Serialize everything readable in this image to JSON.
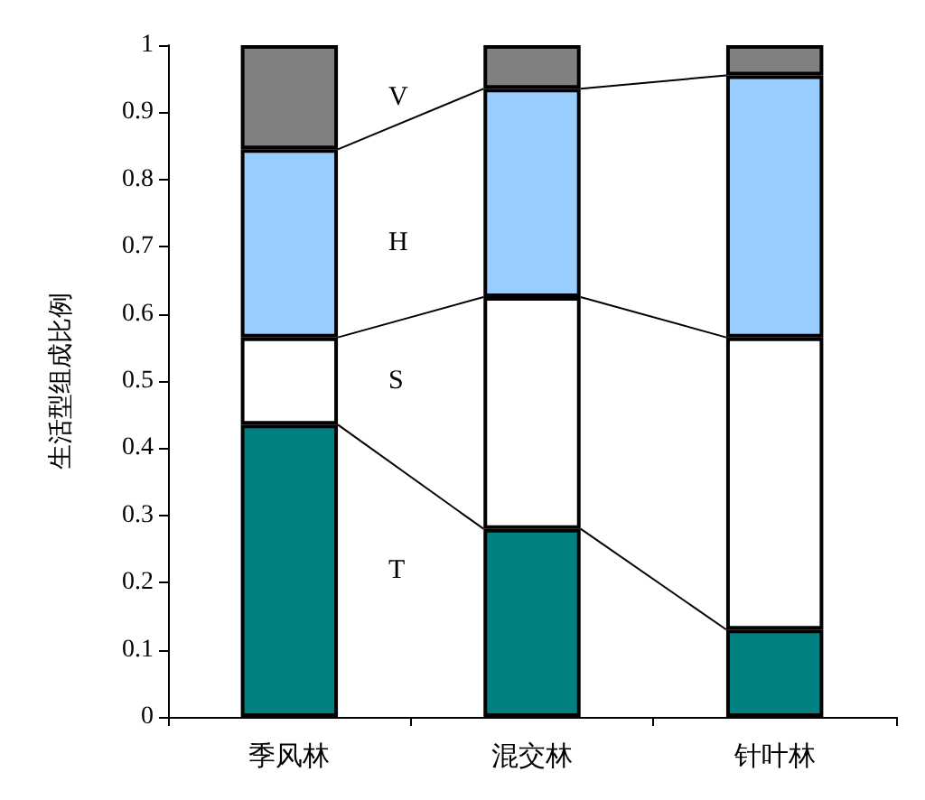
{
  "chart_data": {
    "type": "bar",
    "stacked": true,
    "ylabel": "生活型组成比例",
    "categories": [
      "季风林",
      "混交林",
      "针叶林"
    ],
    "series": [
      {
        "name": "T",
        "color": "#008080",
        "values": [
          0.435,
          0.28,
          0.13
        ]
      },
      {
        "name": "S",
        "color": "#ffffff",
        "values": [
          0.13,
          0.345,
          0.435
        ]
      },
      {
        "name": "H",
        "color": "#99ccff",
        "values": [
          0.28,
          0.31,
          0.39
        ]
      },
      {
        "name": "V",
        "color": "#808080",
        "values": [
          0.155,
          0.065,
          0.045
        ]
      }
    ],
    "ylim": [
      0,
      1
    ],
    "yticks": [
      0,
      0.1,
      0.2,
      0.3,
      0.4,
      0.5,
      0.6,
      0.7,
      0.8,
      0.9,
      1
    ],
    "grid": false,
    "legend": false
  }
}
